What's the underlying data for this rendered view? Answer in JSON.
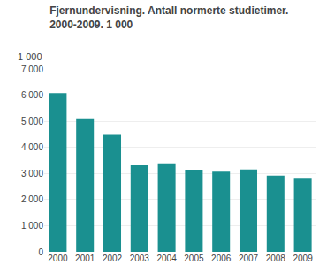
{
  "chart_data": {
    "type": "bar",
    "title": "Fjernundervisning. Antall normerte studietimer.",
    "subtitle": "2000-2009. 1 000",
    "ylabel": "1 000",
    "categories": [
      "2000",
      "2001",
      "2002",
      "2003",
      "2004",
      "2005",
      "2006",
      "2007",
      "2008",
      "2009"
    ],
    "values": [
      6080,
      5080,
      4480,
      3310,
      3360,
      3140,
      3070,
      3150,
      2920,
      2800
    ],
    "color": "#1a9090",
    "ylim": [
      0,
      7000
    ],
    "yticks": [
      0,
      {
        "value": 1000,
        "label": "1 000"
      },
      {
        "value": 2000,
        "label": "2 000"
      },
      {
        "value": 3000,
        "label": "3 000"
      },
      {
        "value": 4000,
        "label": "4 000"
      },
      {
        "value": 5000,
        "label": "5 000"
      },
      {
        "value": 6000,
        "label": "6 000"
      },
      {
        "value": 7000,
        "label": "7 000"
      }
    ],
    "grid": true
  }
}
